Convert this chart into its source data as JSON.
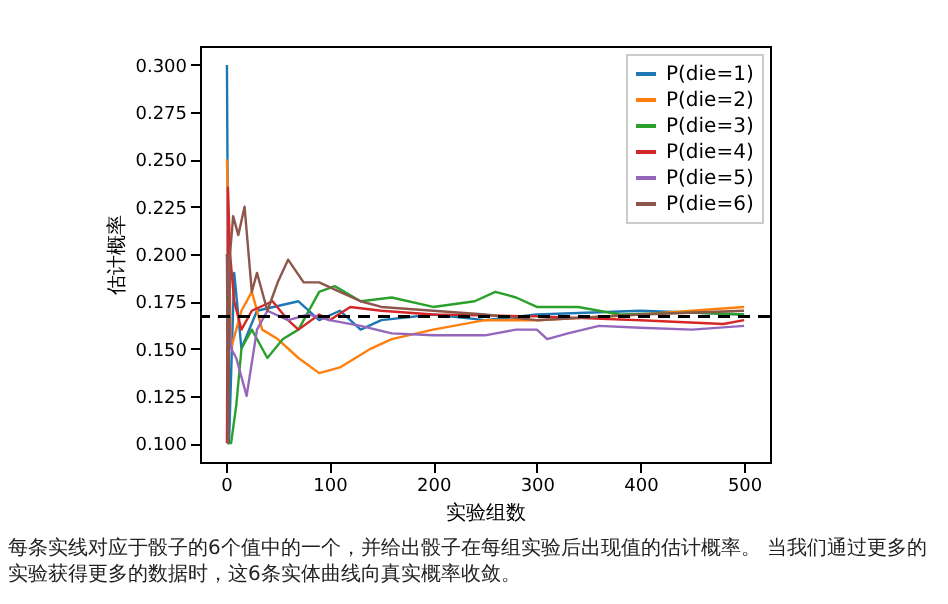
{
  "chart_data": {
    "type": "line",
    "xlabel": "实验组数",
    "ylabel": "估计概率",
    "annotations": [
      "每条实线对应于骰子的6个值中的一个，并给出骰子在每组实验后出现值的估计概率。 当我们通过更多的实验获得更多的数据时，这6条实体曲线向真实概率收敛。"
    ],
    "xlim": [
      -25,
      525
    ],
    "xticks": [
      0,
      100,
      200,
      300,
      400,
      500
    ],
    "ylim": [
      0.09,
      0.31
    ],
    "yticks": [
      {
        "value": 0.1,
        "label": "0.100"
      },
      {
        "value": 0.125,
        "label": "0.125"
      },
      {
        "value": 0.15,
        "label": "0.150"
      },
      {
        "value": 0.175,
        "label": "0.175"
      },
      {
        "value": 0.2,
        "label": "0.200"
      },
      {
        "value": 0.225,
        "label": "0.225"
      },
      {
        "value": 0.25,
        "label": "0.250"
      },
      {
        "value": 0.275,
        "label": "0.275"
      },
      {
        "value": 0.3,
        "label": "0.300"
      }
    ],
    "legend": "top right",
    "ref_lines": [
      {
        "axis": "y",
        "value": 0.167,
        "color": "#000000",
        "line_style": "dashed"
      }
    ],
    "series": [
      {
        "name": "P(die=1)",
        "color": "#1f77b4",
        "x": [
          1,
          3,
          8,
          15,
          30,
          70,
          90,
          110,
          130,
          150,
          200,
          250,
          300,
          400,
          500
        ],
        "values": [
          0.3,
          0.1,
          0.19,
          0.15,
          0.17,
          0.175,
          0.165,
          0.17,
          0.16,
          0.165,
          0.168,
          0.165,
          0.168,
          0.17,
          0.168
        ]
      },
      {
        "name": "P(die=2)",
        "color": "#ff7f0e",
        "x": [
          1,
          3,
          5,
          15,
          25,
          35,
          50,
          70,
          90,
          110,
          140,
          160,
          200,
          250,
          300,
          400,
          500
        ],
        "values": [
          0.25,
          0.2,
          0.15,
          0.17,
          0.18,
          0.16,
          0.155,
          0.145,
          0.137,
          0.14,
          0.15,
          0.155,
          0.16,
          0.165,
          0.165,
          0.168,
          0.172
        ]
      },
      {
        "name": "P(die=3)",
        "color": "#2ca02c",
        "x": [
          1,
          5,
          10,
          15,
          25,
          40,
          55,
          70,
          90,
          105,
          130,
          160,
          200,
          240,
          260,
          280,
          300,
          340,
          380,
          450,
          500
        ],
        "values": [
          0.1,
          0.1,
          0.12,
          0.15,
          0.16,
          0.145,
          0.155,
          0.16,
          0.18,
          0.183,
          0.175,
          0.177,
          0.172,
          0.175,
          0.18,
          0.177,
          0.172,
          0.172,
          0.168,
          0.169,
          0.168
        ]
      },
      {
        "name": "P(die=4)",
        "color": "#d62728",
        "x": [
          1,
          2,
          4,
          8,
          15,
          25,
          45,
          60,
          70,
          90,
          100,
          120,
          150,
          200,
          300,
          400,
          480,
          500
        ],
        "values": [
          0.1,
          0.235,
          0.2,
          0.175,
          0.16,
          0.17,
          0.175,
          0.165,
          0.16,
          0.168,
          0.165,
          0.172,
          0.17,
          0.168,
          0.167,
          0.165,
          0.163,
          0.165
        ]
      },
      {
        "name": "P(die=5)",
        "color": "#9467bd",
        "x": [
          1,
          5,
          10,
          20,
          30,
          40,
          60,
          80,
          100,
          130,
          160,
          200,
          250,
          280,
          300,
          310,
          330,
          360,
          400,
          450,
          500
        ],
        "values": [
          0.2,
          0.15,
          0.145,
          0.125,
          0.16,
          0.17,
          0.165,
          0.168,
          0.165,
          0.162,
          0.158,
          0.157,
          0.157,
          0.16,
          0.16,
          0.155,
          0.158,
          0.162,
          0.161,
          0.16,
          0.162
        ]
      },
      {
        "name": "P(die=6)",
        "color": "#8c564b",
        "x": [
          1,
          2,
          4,
          7,
          12,
          18,
          25,
          30,
          40,
          50,
          60,
          75,
          90,
          110,
          130,
          150,
          200,
          250,
          300,
          400,
          500
        ],
        "values": [
          0.2,
          0.1,
          0.2,
          0.22,
          0.21,
          0.225,
          0.18,
          0.19,
          0.17,
          0.185,
          0.197,
          0.185,
          0.185,
          0.18,
          0.175,
          0.172,
          0.17,
          0.168,
          0.165,
          0.168,
          0.17
        ]
      }
    ]
  }
}
